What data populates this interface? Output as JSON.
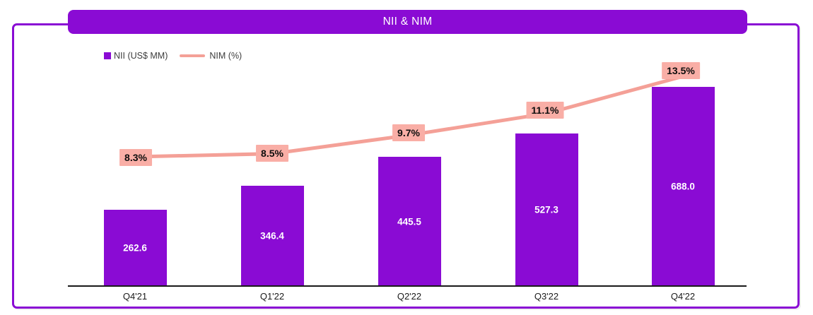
{
  "header": {
    "title": "NII & NIM"
  },
  "legend": {
    "items": [
      {
        "label": "NII (US$ MM)",
        "marker": "square-icon"
      },
      {
        "label": "NIM (%)",
        "marker": "line-icon"
      }
    ]
  },
  "colors": {
    "purple": "#8a0bd4",
    "salmon_line": "#f4a097",
    "salmon_box": "#f9aea6",
    "axis": "#1a1a1a",
    "bar_label_text": "#ffffff",
    "pct_label_text": "#0d0d0d"
  },
  "chart_data": {
    "type": "bar",
    "title": "NII & NIM",
    "categories": [
      "Q4'21",
      "Q1'22",
      "Q2'22",
      "Q3'22",
      "Q4'22"
    ],
    "series": [
      {
        "name": "NII (US$ MM)",
        "type": "bar",
        "unit": "US$ MM",
        "values": [
          262.6,
          346.4,
          445.5,
          527.3,
          688.0
        ],
        "labels": [
          "262.6",
          "346.4",
          "445.5",
          "527.3",
          "688.0"
        ],
        "color": "#8a0bd4"
      },
      {
        "name": "NIM (%)",
        "type": "line",
        "unit": "%",
        "values": [
          8.3,
          8.5,
          9.7,
          11.1,
          13.5
        ],
        "labels": [
          "8.3%",
          "8.5%",
          "9.7%",
          "11.1%",
          "13.5%"
        ],
        "color": "#f4a097"
      }
    ],
    "legend_position": "top-left",
    "grid": false,
    "y_axis_visible": false,
    "x_axis_visible": true
  }
}
